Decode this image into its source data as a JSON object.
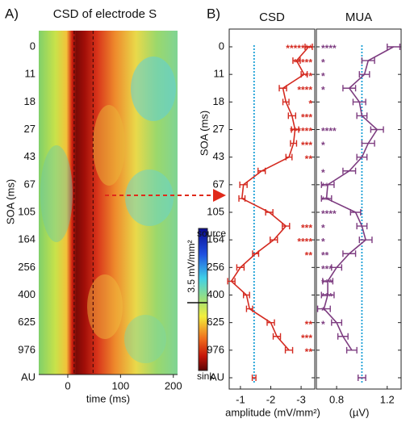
{
  "chart_data": [
    {
      "type": "heatmap",
      "panel": "A)",
      "title": "CSD of electrode S",
      "x_label": "time (ms)",
      "y_label": "SOA (ms)",
      "categories": [
        "0",
        "11",
        "18",
        "27",
        "43",
        "67",
        "105",
        "164",
        "256",
        "400",
        "625",
        "976",
        "AU"
      ],
      "xlim": [
        -55,
        208
      ],
      "xticks": [
        0,
        100,
        200
      ],
      "markers": [
        12,
        48
      ],
      "colorbar": {
        "top": "source",
        "bottom": "sink",
        "label": "3.5 mV/mm²"
      }
    },
    {
      "type": "hline",
      "panel": "B)",
      "title": "CSD",
      "x_label": "amplitude (mV/mm²)",
      "y_label": "SOA (ms)",
      "color": "#d42a20",
      "categories": [
        "0",
        null,
        "11",
        null,
        "18",
        null,
        "27",
        null,
        "43",
        null,
        "67",
        null,
        "105",
        null,
        "164",
        null,
        "256",
        null,
        "400",
        null,
        "625",
        null,
        "976",
        null,
        "AU"
      ],
      "values": [
        -3.25,
        -2.85,
        -3.1,
        -2.4,
        -2.5,
        -2.7,
        -2.8,
        -2.75,
        -2.6,
        -1.7,
        -1.1,
        -1.05,
        -1.95,
        -2.5,
        -2.1,
        -1.5,
        -1.0,
        -0.7,
        -1.2,
        -1.3,
        -2.0,
        -2.2,
        -2.6,
        null,
        -1.45
      ],
      "errors": [
        0.12,
        0.12,
        0.1,
        0.12,
        0.1,
        0.12,
        0.12,
        0.1,
        0.1,
        0.12,
        0.12,
        0.1,
        0.12,
        0.12,
        0.12,
        0.1,
        0.12,
        0.12,
        0.1,
        0.1,
        0.12,
        0.12,
        0.12,
        null,
        0.06
      ],
      "significance": [
        "*******",
        "*****",
        "**",
        "****",
        "*",
        "***",
        "******",
        "***",
        "**",
        null,
        null,
        null,
        null,
        "***",
        "****",
        "**",
        null,
        null,
        null,
        null,
        "**",
        "***",
        "**",
        null,
        null
      ],
      "reference": -1.45,
      "xlim": [
        -0.63,
        -3.45
      ],
      "xticks": [
        -1,
        -2,
        -3
      ]
    },
    {
      "type": "hline",
      "title": "MUA",
      "x_label": "(µV)",
      "color": "#7d3c80",
      "values": [
        1.25,
        1.05,
        1.02,
        0.9,
        0.98,
        1.0,
        1.12,
        1.05,
        1.0,
        0.9,
        0.73,
        0.72,
        0.95,
        1.0,
        1.03,
        0.9,
        0.8,
        0.73,
        0.73,
        0.7,
        0.8,
        0.85,
        0.92,
        null,
        1.0
      ],
      "errors": [
        0.05,
        0.05,
        0.04,
        0.05,
        0.05,
        0.04,
        0.05,
        0.05,
        0.04,
        0.05,
        0.05,
        0.04,
        0.04,
        0.04,
        0.05,
        0.05,
        0.04,
        0.04,
        0.05,
        0.05,
        0.04,
        0.04,
        0.04,
        null,
        0.03
      ],
      "significance": [
        "****",
        "*",
        "*",
        "*",
        null,
        null,
        "****",
        "*",
        null,
        "*",
        "**",
        "**",
        "****",
        "*",
        "*",
        "**",
        "***",
        "***",
        "***",
        "*",
        "*",
        null,
        null,
        null,
        null
      ],
      "reference": 1.0,
      "xlim": [
        0.64,
        1.31
      ],
      "xticks": [
        0.8,
        1.2
      ]
    }
  ]
}
